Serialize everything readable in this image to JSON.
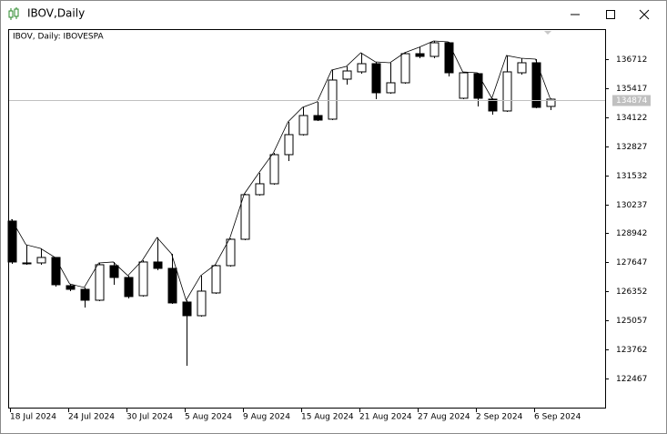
{
  "window": {
    "title": "IBOV,Daily"
  },
  "chart_data": {
    "type": "candlestick",
    "title": "IBOV, Daily:  IBOVESPA",
    "categories": [
      "18 Jul 2024",
      null,
      null,
      null,
      "24 Jul 2024",
      null,
      null,
      null,
      "30 Jul 2024",
      null,
      null,
      null,
      "5 Aug 2024",
      null,
      null,
      null,
      "9 Aug 2024",
      null,
      null,
      null,
      "15 Aug 2024",
      null,
      null,
      null,
      "21 Aug 2024",
      null,
      null,
      null,
      "27 Aug 2024",
      null,
      null,
      null,
      "2 Sep 2024",
      null,
      null,
      null,
      "6 Sep 2024",
      null
    ],
    "open": [
      129489,
      127622,
      127622,
      127866,
      126608,
      126445,
      125958,
      127500,
      126973,
      126161,
      127663,
      127379,
      125877,
      125268,
      126283,
      127500,
      128677,
      130666,
      131153,
      132451,
      133344,
      134196,
      134034,
      135819,
      136144,
      136509,
      135211,
      135657,
      136955,
      136834,
      137442,
      134967,
      136063,
      134926,
      134399,
      136103,
      136550,
      134602
    ],
    "high": [
      129570,
      128434,
      128271,
      127866,
      126689,
      126526,
      127622,
      127663,
      127054,
      127744,
      128758,
      128028,
      125958,
      127054,
      127541,
      128718,
      130706,
      131639,
      132532,
      133912,
      134561,
      134805,
      136225,
      136387,
      136996,
      136590,
      136550,
      136996,
      137240,
      137524,
      137483,
      136144,
      136103,
      134967,
      136874,
      136753,
      136712,
      134967
    ],
    "low": [
      127581,
      127541,
      127541,
      126567,
      126364,
      125634,
      125918,
      126648,
      126039,
      126121,
      127297,
      125796,
      123037,
      125228,
      126242,
      127460,
      128637,
      130625,
      131112,
      132167,
      133303,
      133953,
      133993,
      135576,
      136063,
      134926,
      135170,
      135616,
      136753,
      136753,
      135941,
      134926,
      134602,
      134237,
      134358,
      136022,
      134521,
      134440
    ],
    "close": [
      127663,
      127581,
      127866,
      126648,
      126445,
      125958,
      127541,
      126973,
      126121,
      127663,
      127379,
      125837,
      125268,
      126364,
      127500,
      128677,
      130666,
      131153,
      132451,
      133344,
      134196,
      133993,
      135779,
      136184,
      136509,
      135211,
      135657,
      136955,
      136834,
      137442,
      136103,
      136103,
      134967,
      134399,
      136144,
      136550,
      134561,
      134926
    ],
    "up_color": "#ffffff",
    "down_color": "#000000",
    "high_line": true,
    "current_price": 134874,
    "ylim": [
      121168,
      138010
    ],
    "yticks": [
      136712,
      135417,
      134122,
      132827,
      131532,
      130237,
      128942,
      127647,
      126352,
      125057,
      123762,
      122467
    ],
    "grid": false
  }
}
